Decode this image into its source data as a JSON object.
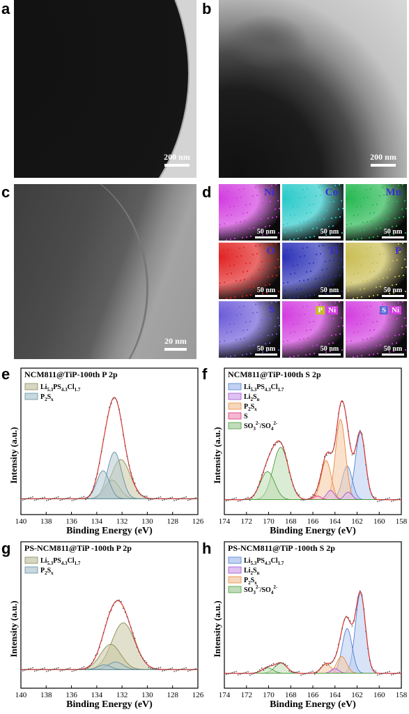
{
  "panels": {
    "a": {
      "label": "a",
      "scale": "200 nm"
    },
    "b": {
      "label": "b",
      "scale": "200 nm"
    },
    "c": {
      "label": "c",
      "scale": "20 nm"
    },
    "d": {
      "label": "d",
      "scale": "50 nm",
      "maps": [
        {
          "el": "Ni",
          "color": "#d23cdf",
          "labelColor": "#3a2bd6"
        },
        {
          "el": "Co",
          "color": "#28c9c9",
          "labelColor": "#3a2bd6"
        },
        {
          "el": "Mn",
          "color": "#23b74f",
          "labelColor": "#3a2bd6"
        },
        {
          "el": "O",
          "color": "#e12222",
          "labelColor": "#3a2bd6"
        },
        {
          "el": "Ti",
          "color": "#2a2fb7",
          "labelColor": "#3a2bd6"
        },
        {
          "el": "P",
          "color": "#c9bd52",
          "labelColor": "#3a2bd6"
        },
        {
          "el": "S",
          "color": "#6d5cd8",
          "labelColor": "#3a2bd6"
        },
        {
          "el": "P+Ni",
          "color": "#d23cdf",
          "chips": [
            "P",
            "Ni"
          ]
        },
        {
          "el": "S+Ni",
          "color": "#d23cdf",
          "chips": [
            "S",
            "Ni"
          ]
        }
      ]
    },
    "e": {
      "label": "e"
    },
    "f": {
      "label": "f"
    },
    "g": {
      "label": "g"
    },
    "h": {
      "label": "h"
    }
  },
  "chart_data": [
    {
      "id": "e",
      "type": "line",
      "title": "NCM811@TiP-100th  P 2p",
      "xlabel": "Binding Energy (eV)",
      "ylabel": "Intensity (a.u.)",
      "xlim": [
        140,
        126
      ],
      "xticks": [
        140,
        138,
        136,
        134,
        132,
        130,
        128,
        126
      ],
      "legend": [
        {
          "name": "Li5.3PS4.3Cl1.7",
          "color": "#8c8a52"
        },
        {
          "name": "P2Sx",
          "color": "#5f8fa0"
        }
      ],
      "components": [
        {
          "name": "Li5.3PS4.3Cl1.7",
          "center": 132.1,
          "amp": 0.42,
          "width": 0.75,
          "color": "#8c8a52",
          "fill": "#c9c6a3"
        },
        {
          "name": "Li5.3PS4.3Cl1.7",
          "center": 132.8,
          "amp": 0.2,
          "width": 0.6,
          "color": "#8c8a52",
          "fill": "#c9c6a3"
        },
        {
          "name": "P2Sx",
          "center": 132.6,
          "amp": 0.5,
          "width": 0.55,
          "color": "#5f8fa0",
          "fill": "#b6cbd2"
        },
        {
          "name": "P2Sx",
          "center": 133.5,
          "amp": 0.3,
          "width": 0.5,
          "color": "#5f8fa0",
          "fill": "#b6cbd2"
        }
      ],
      "baseline": 0.05,
      "peak_fit_max": 1.0
    },
    {
      "id": "f",
      "type": "line",
      "title": "NCM811@TiP-100th  S 2p",
      "xlabel": "Binding Energy (eV)",
      "ylabel": "Intensity (a.u.)",
      "xlim": [
        174,
        158
      ],
      "xticks": [
        174,
        172,
        170,
        168,
        166,
        164,
        162,
        160,
        158
      ],
      "legend": [
        {
          "name": "Li5.3PS4.3Cl1.7",
          "color": "#4f7fd6"
        },
        {
          "name": "Li2Sn",
          "color": "#a24fd6"
        },
        {
          "name": "P2Sx",
          "color": "#e88b3c"
        },
        {
          "name": "S",
          "color": "#e2327a"
        },
        {
          "name": "SO32-/SO42-",
          "color": "#4a9c3a"
        }
      ],
      "components": [
        {
          "name": "Li5.3PS4.3Cl1.7",
          "center": 161.7,
          "amp": 0.72,
          "width": 0.45,
          "color": "#4f7fd6",
          "fill": "#b9ccf1"
        },
        {
          "name": "Li5.3PS4.3Cl1.7",
          "center": 162.9,
          "amp": 0.36,
          "width": 0.45,
          "color": "#4f7fd6",
          "fill": "#b9ccf1"
        },
        {
          "name": "P2Sx",
          "center": 163.5,
          "amp": 0.86,
          "width": 0.45,
          "color": "#e88b3c",
          "fill": "#f5c8a3"
        },
        {
          "name": "P2Sx",
          "center": 164.8,
          "amp": 0.42,
          "width": 0.45,
          "color": "#e88b3c",
          "fill": "#f5c8a3"
        },
        {
          "name": "Li2Sn",
          "center": 164.4,
          "amp": 0.1,
          "width": 0.35,
          "color": "#a24fd6",
          "fill": "#dcc2f0"
        },
        {
          "name": "Li2Sn",
          "center": 162.8,
          "amp": 0.08,
          "width": 0.35,
          "color": "#a24fd6",
          "fill": "#dcc2f0"
        },
        {
          "name": "S",
          "center": 165.6,
          "amp": 0.04,
          "width": 0.35,
          "color": "#e2327a",
          "fill": "#f6b6cf"
        },
        {
          "name": "SO32-/SO42-",
          "center": 168.9,
          "amp": 0.56,
          "width": 0.7,
          "color": "#4a9c3a",
          "fill": "#bedcb2"
        },
        {
          "name": "SO32-/SO42-",
          "center": 170.1,
          "amp": 0.3,
          "width": 0.65,
          "color": "#4a9c3a",
          "fill": "#bedcb2"
        }
      ],
      "baseline": 0.04
    },
    {
      "id": "g",
      "type": "line",
      "title": "PS-NCM811@TiP -100th  P 2p",
      "xlabel": "Binding Energy (eV)",
      "ylabel": "Intensity (a.u.)",
      "xlim": [
        140,
        126
      ],
      "xticks": [
        140,
        138,
        136,
        134,
        132,
        130,
        128,
        126
      ],
      "legend": [
        {
          "name": "Li5.3PS4.3Cl1.7",
          "color": "#8c8a52"
        },
        {
          "name": "P2Sx",
          "color": "#5f8fa0"
        }
      ],
      "components": [
        {
          "name": "Li5.3PS4.3Cl1.7",
          "center": 131.9,
          "amp": 0.5,
          "width": 0.9,
          "color": "#8c8a52",
          "fill": "#c9c6a3"
        },
        {
          "name": "Li5.3PS4.3Cl1.7",
          "center": 132.9,
          "amp": 0.27,
          "width": 0.8,
          "color": "#8c8a52",
          "fill": "#c9c6a3"
        },
        {
          "name": "P2Sx",
          "center": 132.5,
          "amp": 0.08,
          "width": 0.6,
          "color": "#5f8fa0",
          "fill": "#b6cbd2"
        },
        {
          "name": "P2Sx",
          "center": 133.4,
          "amp": 0.05,
          "width": 0.5,
          "color": "#5f8fa0",
          "fill": "#b6cbd2"
        }
      ],
      "baseline": 0.08
    },
    {
      "id": "h",
      "type": "line",
      "title": "PS-NCM811@TiP -100th  S 2p",
      "xlabel": "Binding Energy (eV)",
      "ylabel": "Intensity (a.u.)",
      "xlim": [
        174,
        158
      ],
      "xticks": [
        174,
        172,
        170,
        168,
        166,
        164,
        162,
        160,
        158
      ],
      "legend": [
        {
          "name": "Li5.3PS4.3Cl1.7",
          "color": "#4f7fd6"
        },
        {
          "name": "Li2Sn",
          "color": "#a24fd6"
        },
        {
          "name": "P2Sx",
          "color": "#e88b3c"
        },
        {
          "name": "SO32-/SO42-",
          "color": "#4a9c3a"
        }
      ],
      "components": [
        {
          "name": "Li5.3PS4.3Cl1.7",
          "center": 161.7,
          "amp": 0.86,
          "width": 0.45,
          "color": "#4f7fd6",
          "fill": "#b9ccf1"
        },
        {
          "name": "Li5.3PS4.3Cl1.7",
          "center": 162.9,
          "amp": 0.48,
          "width": 0.45,
          "color": "#4f7fd6",
          "fill": "#b9ccf1"
        },
        {
          "name": "P2Sx",
          "center": 163.4,
          "amp": 0.18,
          "width": 0.45,
          "color": "#e88b3c",
          "fill": "#f5c8a3"
        },
        {
          "name": "P2Sx",
          "center": 164.8,
          "amp": 0.1,
          "width": 0.45,
          "color": "#e88b3c",
          "fill": "#f5c8a3"
        },
        {
          "name": "Li2Sn",
          "center": 164.0,
          "amp": 0.05,
          "width": 0.35,
          "color": "#a24fd6",
          "fill": "#dcc2f0"
        },
        {
          "name": "SO32-/SO42-",
          "center": 168.9,
          "amp": 0.11,
          "width": 0.55,
          "color": "#4a9c3a",
          "fill": "#bedcb2"
        },
        {
          "name": "SO32-/SO42-",
          "center": 170.1,
          "amp": 0.06,
          "width": 0.5,
          "color": "#4a9c3a",
          "fill": "#bedcb2"
        }
      ],
      "baseline": 0.04
    }
  ]
}
